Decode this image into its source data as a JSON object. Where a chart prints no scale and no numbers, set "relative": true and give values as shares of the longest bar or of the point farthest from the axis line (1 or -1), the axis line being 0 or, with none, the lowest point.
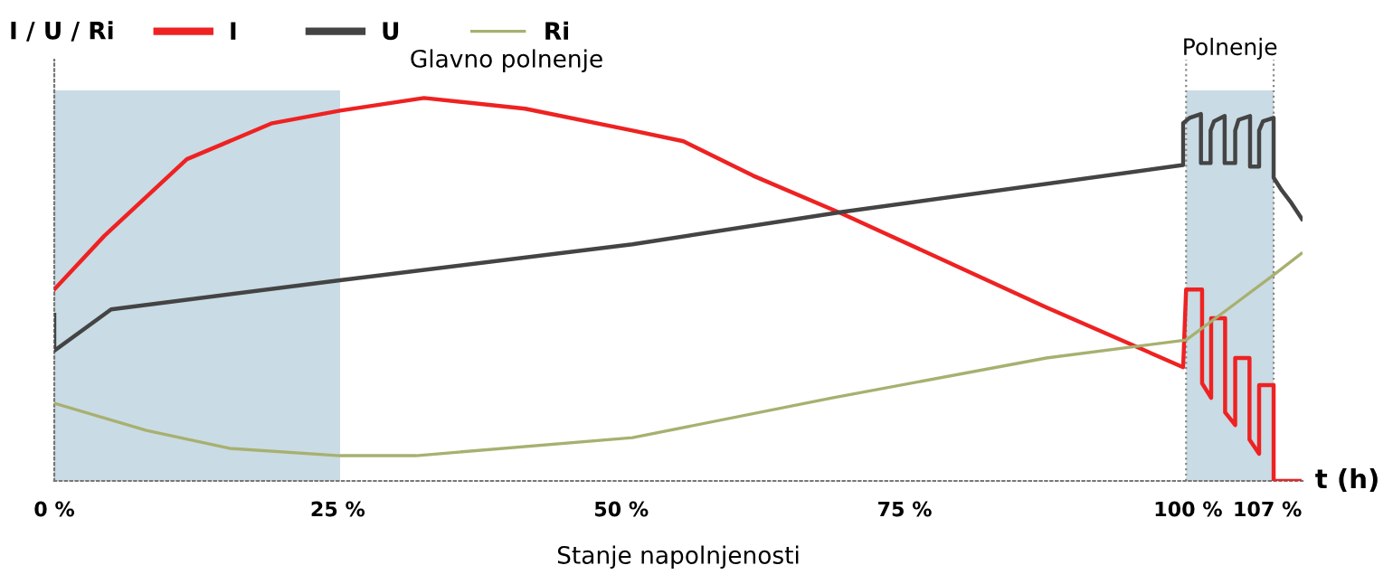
{
  "chart_data": {
    "type": "line",
    "relative": true,
    "xlabel": "Stanje napolnjenosti",
    "ylabel": "I / U / Ri",
    "annotations": [
      "Glavno polnenje",
      "t (h)"
    ],
    "xlim": [
      0,
      110.1
    ],
    "xticks": [
      {
        "value": 0,
        "label": "0 %"
      },
      {
        "value": 25,
        "label": "25 %"
      },
      {
        "value": 50,
        "label": "50 %"
      },
      {
        "value": 75,
        "label": "75 %"
      },
      {
        "value": 100,
        "label": "100 %"
      },
      {
        "value": 107,
        "label": "107 %"
      }
    ],
    "bands": [
      {
        "axis": "x",
        "from": 0,
        "to": 25.21,
        "color": "#c9dbe4"
      },
      {
        "axis": "x",
        "from": 99.83,
        "to": 107.55,
        "label": "Polnenje",
        "color": "#c9dbe4"
      }
    ],
    "ref_lines": [
      {
        "axis": "x",
        "value": 99.83,
        "color": "#888888",
        "line_style": "dotted"
      },
      {
        "axis": "x",
        "value": 107.55,
        "color": "#888888",
        "line_style": "dotted"
      }
    ],
    "legend": "top left",
    "series": [
      {
        "name": "I",
        "color": "#ee2222",
        "x": [
          0,
          4.42,
          11.69,
          19.21,
          25.21,
          32.61,
          41.54,
          50.99,
          55.49,
          61.64,
          69.46,
          78.17,
          87.5,
          99.57,
          99.83,
          101.24,
          101.24,
          102.04,
          102.04,
          103.27,
          103.27,
          104.16,
          104.16,
          105.42,
          105.42,
          106.27,
          106.27,
          107.55,
          107.55,
          109.84
        ],
        "values": [
          0.5,
          0.64,
          0.84,
          0.934,
          0.967,
          1.0,
          0.972,
          0.915,
          0.887,
          0.797,
          0.698,
          0.58,
          0.453,
          0.297,
          0.5,
          0.5,
          0.255,
          0.217,
          0.425,
          0.425,
          0.179,
          0.146,
          0.321,
          0.321,
          0.108,
          0.071,
          0.25,
          0.25,
          0,
          0
        ]
      },
      {
        "name": "U",
        "color": "#444444",
        "x": [
          0,
          0,
          5.01,
          25.21,
          50.99,
          69.6,
          99.57,
          99.57,
          100.14,
          101.14,
          101.14,
          101.99,
          101.99,
          102.29,
          103.23,
          103.23,
          104.16,
          104.16,
          104.46,
          105.47,
          105.47,
          106.27,
          106.27,
          106.61,
          107.55,
          107.55,
          108.26,
          109.11,
          110.04
        ],
        "values": [
          0.434,
          0.34,
          0.448,
          0.524,
          0.618,
          0.703,
          0.825,
          0.934,
          0.948,
          0.958,
          0.83,
          0.83,
          0.915,
          0.939,
          0.953,
          0.83,
          0.83,
          0.915,
          0.943,
          0.953,
          0.821,
          0.821,
          0.915,
          0.939,
          0.948,
          0.792,
          0.759,
          0.726,
          0.684
        ]
      },
      {
        "name": "Ri",
        "color": "#a8b070",
        "x": [
          0,
          8.13,
          15.45,
          25.21,
          31.89,
          50.99,
          68.62,
          87.5,
          99.83,
          104.12,
          107.55,
          110.0
        ],
        "values": [
          0.203,
          0.132,
          0.085,
          0.066,
          0.066,
          0.113,
          0.217,
          0.321,
          0.368,
          0.462,
          0.538,
          0.594
        ]
      }
    ]
  }
}
